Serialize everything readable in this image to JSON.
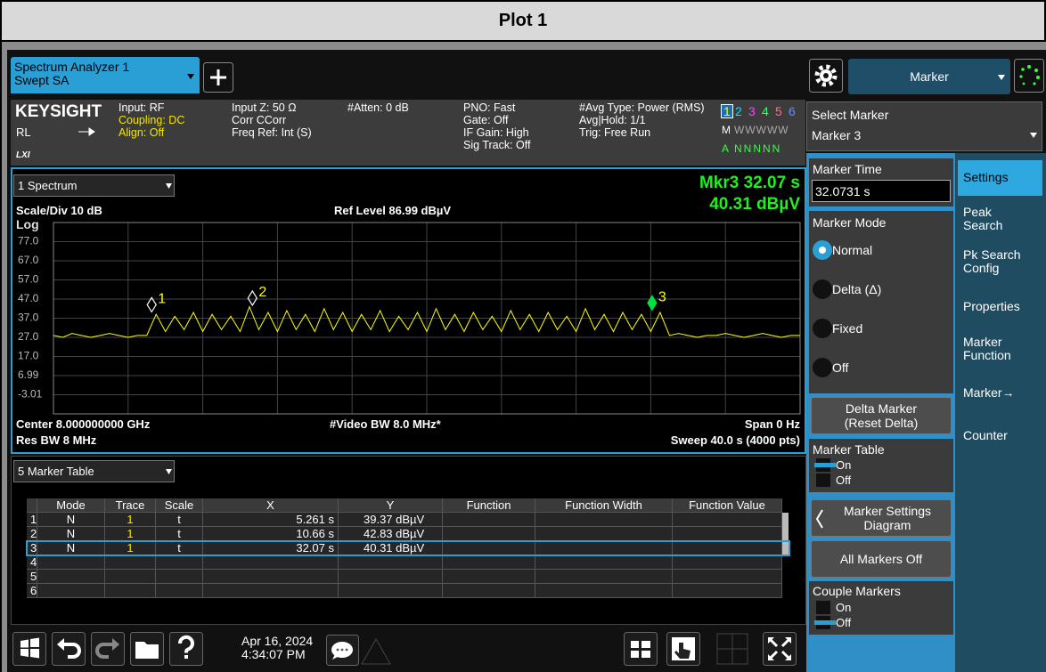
{
  "header": {
    "title": "Plot 1"
  },
  "app": {
    "tab": {
      "line1": "Spectrum Analyzer 1",
      "line2": "Swept SA"
    },
    "menu": "Marker"
  },
  "status": {
    "brand": "KEYSIGHT",
    "rl": "RL",
    "lxi": "LXI",
    "columns": [
      [
        "Input: RF",
        "Coupling: DC",
        "Align: Off"
      ],
      [
        "Input Z: 50 Ω",
        "Corr CCorr",
        "Freq Ref: Int (S)"
      ],
      [
        "#Atten: 0 dB"
      ],
      [
        "PNO: Fast",
        "Gate: Off",
        "IF Gain: High",
        "Sig Track: Off"
      ],
      [
        "#Avg Type: Power (RMS)",
        "Avg|Hold: 1/1",
        "Trig: Free Run"
      ]
    ],
    "traces": {
      "numbers": [
        "1",
        "2",
        "3",
        "4",
        "5",
        "6"
      ],
      "colors": [
        "#ffff00",
        "#00e5ff",
        "#ff40ff",
        "#33ff66",
        "#ff6b8a",
        "#6b8cff"
      ],
      "mode_prefix": "M",
      "modes": "WWWWW",
      "avg_prefix": "A",
      "avg": "NNNNN"
    }
  },
  "spectrum": {
    "window": "1 Spectrum",
    "marker_readout": {
      "x": "Mkr3  32.07 s",
      "y": "40.31 dBµV"
    },
    "scale": "Scale/Div 10 dB",
    "ref_level": "Ref Level 86.99 dBµV",
    "scale_type": "Log",
    "ylim": [
      -13.01,
      86.99
    ],
    "yticks": [
      {
        "value": 77.0,
        "label": "77.0"
      },
      {
        "value": 67.0,
        "label": "67.0"
      },
      {
        "value": 57.0,
        "label": "57.0"
      },
      {
        "value": 47.0,
        "label": "47.0"
      },
      {
        "value": 37.0,
        "label": "37.0"
      },
      {
        "value": 27.0,
        "label": "27.0"
      },
      {
        "value": 17.0,
        "label": "17.0"
      },
      6.99,
      -3.01
    ],
    "xlim": [
      0,
      40
    ],
    "xticks": [
      0,
      4,
      8,
      12,
      16,
      20,
      24,
      28,
      32,
      36,
      40
    ],
    "center": "Center 8.000000000 GHz",
    "video_bw": "#Video BW 8.0 MHz*",
    "span": "Span 0 Hz",
    "res_bw": "Res BW 8 MHz",
    "sweep": "Sweep 40.0 s (4000 pts)",
    "trace": {
      "color": "#ffff00",
      "x": [
        0,
        0.5,
        1,
        1.5,
        2,
        2.5,
        3,
        3.5,
        4,
        4.5,
        5,
        5.5,
        6,
        6.5,
        7,
        7.5,
        8,
        8.5,
        9,
        9.5,
        10,
        10.5,
        11,
        11.5,
        12,
        12.5,
        13,
        13.5,
        14,
        14.5,
        15,
        15.5,
        16,
        16.5,
        17,
        17.5,
        18,
        18.5,
        19,
        19.5,
        20,
        20.5,
        21,
        21.5,
        22,
        22.5,
        23,
        23.5,
        24,
        24.5,
        25,
        25.5,
        26,
        26.5,
        27,
        27.5,
        28,
        28.5,
        29,
        29.5,
        30,
        30.5,
        31,
        31.5,
        32,
        32.5,
        33,
        33.5,
        34,
        34.5,
        35,
        35.5,
        36,
        36.5,
        37,
        37.5,
        38,
        38.5,
        39,
        39.5,
        40
      ],
      "y": [
        28,
        27,
        29,
        28,
        27,
        28,
        29,
        28,
        27,
        28,
        28,
        39,
        30,
        38,
        31,
        40,
        30,
        39,
        31,
        38,
        30,
        43,
        31,
        40,
        30,
        41,
        31,
        39,
        30,
        42,
        31,
        40,
        30,
        39,
        31,
        41,
        30,
        38,
        31,
        40,
        30,
        42,
        31,
        39,
        30,
        40,
        31,
        38,
        30,
        41,
        31,
        39,
        30,
        40,
        31,
        38,
        30,
        42,
        31,
        39,
        30,
        40,
        31,
        39,
        30,
        40,
        28,
        29,
        28,
        27,
        28,
        28,
        29,
        28,
        27,
        28,
        29,
        28,
        27,
        28,
        28
      ]
    },
    "markers": [
      {
        "label": "1",
        "x": 5.261,
        "y": 39.37
      },
      {
        "label": "2",
        "x": 10.66,
        "y": 42.83
      },
      {
        "label": "3",
        "x": 32.07,
        "y": 40.31
      }
    ],
    "active_marker": 2,
    "marker_color": "#ffffff",
    "active_marker_color": "#00e040",
    "marker_label_color": "#ffff00"
  },
  "marker_table": {
    "window": "5 Marker Table",
    "columns": [
      "Mode",
      "Trace",
      "Scale",
      "X",
      "Y",
      "Function",
      "Function Width",
      "Function Value"
    ],
    "rows": [
      [
        "1",
        "N",
        "1",
        "t",
        "5.261 s",
        "39.37 dBµV"
      ],
      [
        "2",
        "N",
        "1",
        "t",
        "10.66 s",
        "42.83 dBµV"
      ],
      [
        "3",
        "N",
        "1",
        "t",
        "32.07 s",
        "40.31 dBµV"
      ],
      [
        "4"
      ],
      [
        "5"
      ],
      [
        "6"
      ]
    ],
    "selected_row": 2
  },
  "toolbar": {
    "date": "Apr 16, 2024",
    "time": "4:34:07 PM"
  },
  "side": {
    "select_marker": {
      "label": "Select Marker",
      "value": "Marker 3"
    },
    "marker_time": {
      "label": "Marker Time",
      "value": "32.0731 s"
    },
    "marker_mode": {
      "label": "Marker Mode",
      "options": [
        "Normal",
        "Delta (Δ)",
        "Fixed",
        "Off"
      ],
      "selected": 0
    },
    "delta_button": [
      "Delta Marker",
      "(Reset Delta)"
    ],
    "marker_table": {
      "label": "Marker Table",
      "options": [
        "On",
        "Off"
      ],
      "selected": 0
    },
    "settings_diagram": [
      "Marker Settings",
      "Diagram"
    ],
    "all_off": "All Markers Off",
    "couple": {
      "label": "Couple Markers",
      "options": [
        "On",
        "Off"
      ],
      "selected": 1
    }
  },
  "tabs": [
    [
      "Settings"
    ],
    [
      "Peak",
      "Search"
    ],
    [
      "Pk Search",
      "Config"
    ],
    [
      "Properties"
    ],
    [
      "Marker",
      "Function"
    ],
    [
      "Marker→"
    ],
    [
      "Counter"
    ]
  ],
  "active_tab": 0
}
